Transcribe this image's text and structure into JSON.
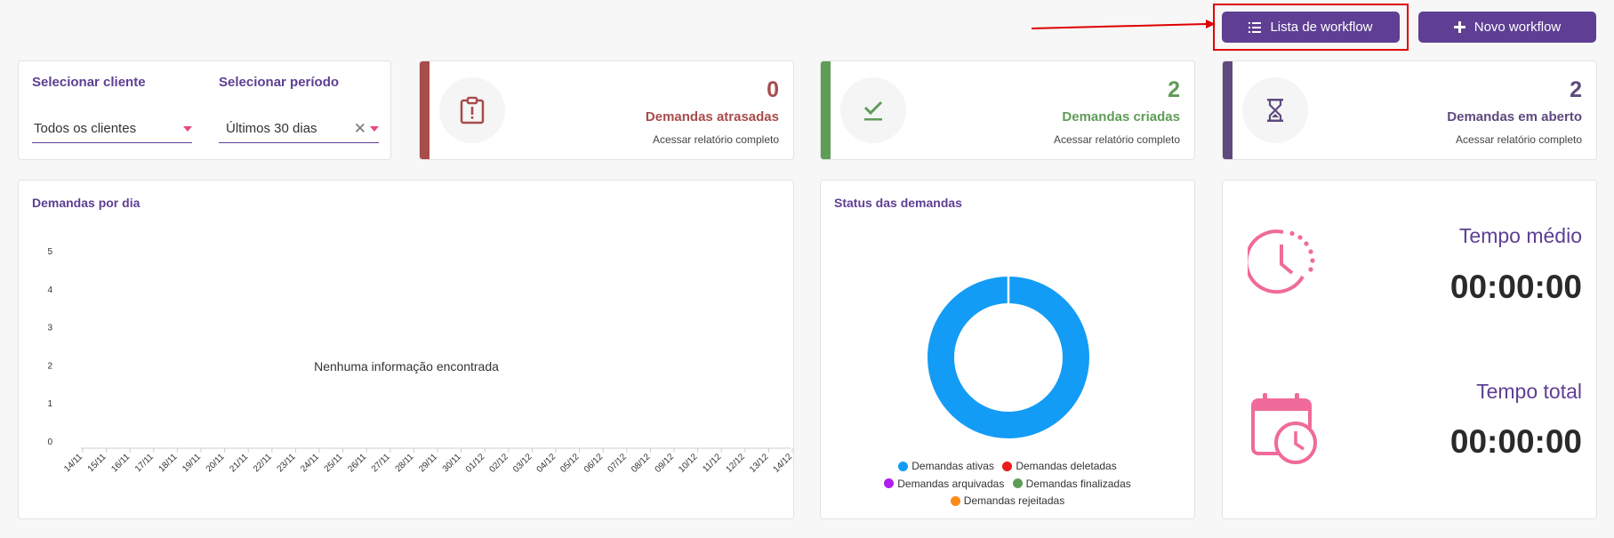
{
  "header": {
    "list_button_label": "Lista de workflow",
    "new_button_label": "Novo workflow"
  },
  "filters": {
    "client_label": "Selecionar cliente",
    "client_value": "Todos os clientes",
    "period_label": "Selecionar período",
    "period_value": "Últimos 30 dias"
  },
  "stats": [
    {
      "count": "0",
      "title": "Demandas atrasadas",
      "link": "Acessar relatório completo",
      "color": "#a84c4c",
      "icon": "clipboard-alert-icon"
    },
    {
      "count": "2",
      "title": "Demandas criadas",
      "link": "Acessar relatório completo",
      "color": "#5f9c57",
      "icon": "check-icon"
    },
    {
      "count": "2",
      "title": "Demandas em aberto",
      "link": "Acessar relatório completo",
      "color": "#5e4a7e",
      "icon": "hourglass-icon"
    }
  ],
  "daily_chart": {
    "title": "Demandas por dia",
    "empty_message": "Nenhuma informação encontrada"
  },
  "status_chart": {
    "title": "Status das demandas",
    "legend": [
      {
        "label": "Demandas ativas",
        "color": "#139cf5"
      },
      {
        "label": "Demandas deletadas",
        "color": "#ef1c1c"
      },
      {
        "label": "Demandas arquivadas",
        "color": "#b11ef0"
      },
      {
        "label": "Demandas finalizadas",
        "color": "#5f9c57"
      },
      {
        "label": "Demandas rejeitadas",
        "color": "#f98b16"
      }
    ]
  },
  "times": {
    "average_label": "Tempo médio",
    "average_value": "00:00:00",
    "total_label": "Tempo total",
    "total_value": "00:00:00",
    "icon_color": "#f06a9a"
  },
  "chart_data": [
    {
      "type": "line",
      "title": "Demandas por dia",
      "x": [
        "14/11",
        "15/11",
        "16/11",
        "17/11",
        "18/11",
        "19/11",
        "20/11",
        "21/11",
        "22/11",
        "23/11",
        "24/11",
        "25/11",
        "26/11",
        "27/11",
        "28/11",
        "29/11",
        "30/11",
        "01/12",
        "02/12",
        "03/12",
        "04/12",
        "05/12",
        "06/12",
        "07/12",
        "08/12",
        "09/12",
        "10/12",
        "11/12",
        "12/12",
        "13/12",
        "14/12"
      ],
      "yticks": [
        0,
        1,
        2,
        3,
        4,
        5
      ],
      "ylim": [
        0,
        5
      ],
      "series": [],
      "grid": false
    },
    {
      "type": "pie",
      "title": "Status das demandas",
      "labels": [
        "Demandas ativas",
        "Demandas deletadas",
        "Demandas arquivadas",
        "Demandas finalizadas",
        "Demandas rejeitadas"
      ],
      "values": [
        100,
        0,
        0,
        0,
        0
      ],
      "donut": true
    }
  ]
}
